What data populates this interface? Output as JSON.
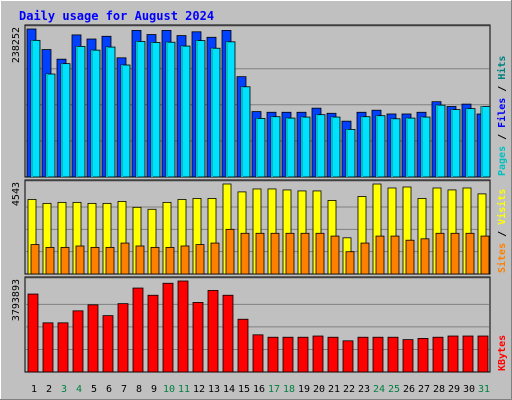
{
  "chart_data": {
    "title": "Daily usage for August 2024",
    "type": "bar",
    "categories": [
      "1",
      "2",
      "3",
      "4",
      "5",
      "6",
      "7",
      "8",
      "9",
      "10",
      "11",
      "12",
      "13",
      "14",
      "15",
      "16",
      "17",
      "18",
      "19",
      "20",
      "21",
      "22",
      "23",
      "24",
      "25",
      "26",
      "27",
      "28",
      "29",
      "30",
      "31"
    ],
    "weekend_days": [
      "3",
      "4",
      "10",
      "11",
      "17",
      "18",
      "24",
      "25",
      "31"
    ],
    "panels": [
      {
        "name": "hits-files-pages",
        "max_label": "238252",
        "axis_label_parts": [
          "Pages",
          "Files",
          "Hits"
        ],
        "series": [
          {
            "name": "Hits",
            "color": "#0040ff",
            "values": [
              238252,
              205150,
              189662,
              228730,
              222114,
              226524,
              191868,
              235944,
              229328,
              235944,
              227676,
              233738,
              224918,
              235944,
              161530,
              105310,
              104208,
              104208,
              104208,
              110824,
              102554,
              89874,
              104208,
              107516,
              101452,
              101452,
              104208,
              121190,
              113470,
              117330,
              101452
            ]
          },
          {
            "name": "Files",
            "color": "#00e0ff",
            "values": [
              219972,
              165796,
              182482,
              210264,
              204208,
              209172,
              180282,
              218220,
              216578,
              216984,
              210750,
              219576,
              207290,
              217624,
              145216,
              94278,
              97036,
              94830,
              96484,
              100342,
              96484,
              76642,
              97036,
              98688,
              93728,
              94830,
              96484,
              115676,
              108510,
              110060,
              113470
            ]
          },
          {
            "name": "Pages",
            "color": "#00e0e0",
            "values": [
              219972,
              165796,
              182482,
              210264,
              204208,
              209172,
              180282,
              218220,
              216578,
              216984,
              210750,
              219576,
              207290,
              217624,
              145216,
              94278,
              97036,
              94830,
              96484,
              100342,
              96484,
              76642,
              97036,
              98688,
              93728,
              94830,
              96484,
              115676,
              108510,
              110060,
              113470
            ]
          }
        ]
      },
      {
        "name": "visits-sites",
        "max_label": "4543",
        "axis_label_parts": [
          "Sites",
          "Visits"
        ],
        "series": [
          {
            "name": "Visits",
            "color": "#ffff00",
            "values": [
              3764,
              3565,
              3615,
              3615,
              3565,
              3565,
              3665,
              3366,
              3267,
              3615,
              3764,
              3814,
              3814,
              4543,
              4144,
              4293,
              4293,
              4243,
              4193,
              4193,
              3714,
              1827,
              3914,
              4542,
              4342,
              4392,
              3814,
              4342,
              4244,
              4342,
              4044
            ]
          },
          {
            "name": "Sites",
            "color": "#ff8000",
            "values": [
              1486,
              1344,
              1344,
              1414,
              1344,
              1344,
              1561,
              1414,
              1344,
              1344,
              1414,
              1486,
              1561,
              2255,
              2055,
              2055,
              2055,
              2055,
              2055,
              2055,
              1914,
              1124,
              1561,
              1914,
              1914,
              1706,
              1776,
              2055,
              2055,
              2055,
              1914
            ]
          }
        ]
      },
      {
        "name": "kbytes",
        "max_label": "3793893",
        "axis_label_parts": [
          "KBytes"
        ],
        "series": [
          {
            "name": "KBytes",
            "color": "#ff0000",
            "values": [
              3250000,
              2050000,
              2050000,
              2550000,
              2800000,
              2350000,
              2850000,
              3500000,
              3200000,
              3700000,
              3793893,
              2900000,
              3400000,
              3200000,
              2200000,
              1550000,
              1450000,
              1450000,
              1450000,
              1500000,
              1450000,
              1300000,
              1450000,
              1450000,
              1450000,
              1350000,
              1400000,
              1450000,
              1500000,
              1500000,
              1500000
            ]
          }
        ]
      }
    ]
  }
}
